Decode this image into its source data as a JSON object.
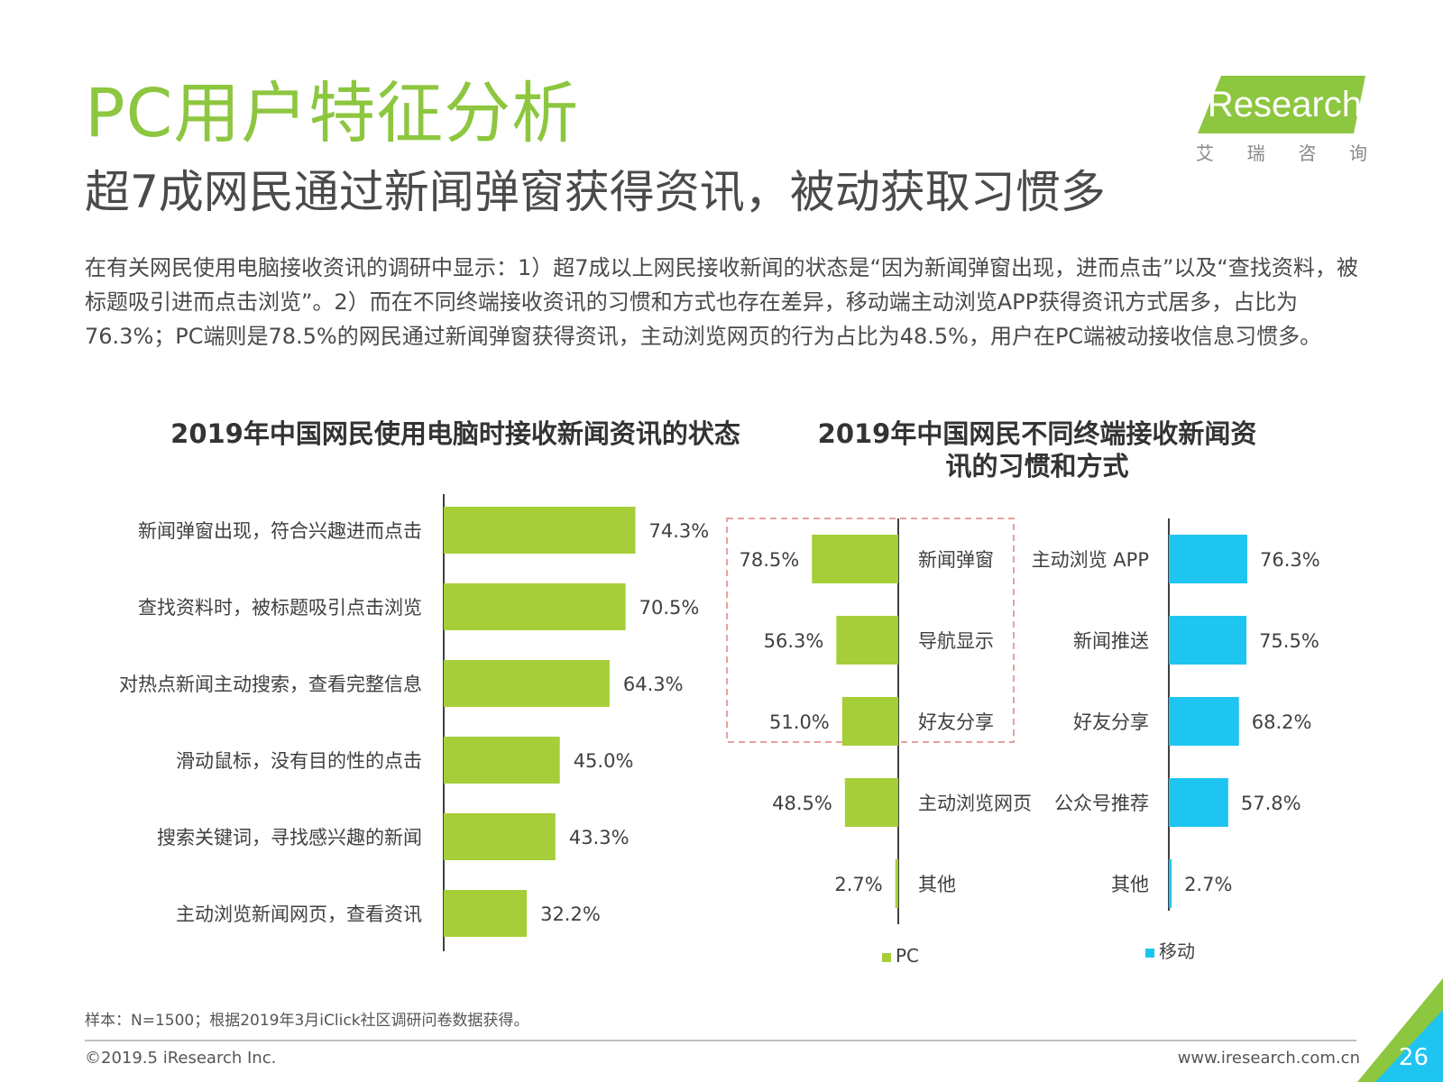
{
  "header": {
    "title": "PC用户特征分析",
    "subtitle": "超7成网民通过新闻弹窗获得资讯，被动获取习惯多",
    "body": "在有关网民使用电脑接收资讯的调研中显示：1）超7成以上网民接收新闻的状态是“因为新闻弹窗出现，进而点击”以及“查找资料，被标题吸引进而点击浏览”。2）而在不同终端接收资讯的习惯和方式也存在差异，移动端主动浏览APP获得资讯方式居多，占比为76.3%；PC端则是78.5%的网民通过新闻弹窗获得资讯，主动浏览网页的行为占比为48.5%，用户在PC端被动接收信息习惯多。"
  },
  "logo": {
    "brand": "iResearch",
    "cn": [
      "艾",
      "瑞",
      "咨",
      "询"
    ],
    "color": "#8dc63f"
  },
  "colors": {
    "accent": "#8dc63f",
    "pc_bar": "#a6ce39",
    "mobile_bar": "#1ec5f0",
    "highlight_box": "#e8a0a0"
  },
  "chart_data": [
    {
      "type": "bar",
      "orientation": "horizontal",
      "title": "2019年中国网民使用电脑时接收新闻资讯的状态",
      "categories": [
        "新闻弹窗出现，符合兴趣进而点击",
        "查找资料时，被标题吸引点击浏览",
        "对热点新闻主动搜索，查看完整信息",
        "滑动鼠标，没有目的性的点击",
        "搜索关键词，寻找感兴趣的新闻",
        "主动浏览新闻网页，查看资讯"
      ],
      "values": [
        74.3,
        70.5,
        64.3,
        45.0,
        43.3,
        32.2
      ],
      "labels": [
        "74.3%",
        "70.5%",
        "64.3%",
        "45.0%",
        "43.3%",
        "32.2%"
      ],
      "xlim": [
        0,
        100
      ],
      "color": "#a6ce39"
    },
    {
      "type": "bar",
      "orientation": "horizontal-butterfly",
      "title": "2019年中国网民不同终端接收新闻资讯的习惯和方式",
      "series": [
        {
          "name": "PC",
          "color": "#a6ce39",
          "categories": [
            "新闻弹窗",
            "导航显示",
            "好友分享",
            "主动浏览网页",
            "其他"
          ],
          "values": [
            78.5,
            56.3,
            51.0,
            48.5,
            2.7
          ],
          "labels": [
            "78.5%",
            "56.3%",
            "51.0%",
            "48.5%",
            "2.7%"
          ]
        },
        {
          "name": "移动",
          "color": "#1ec5f0",
          "categories": [
            "主动浏览 APP",
            "新闻推送",
            "好友分享",
            "公众号推荐",
            "其他"
          ],
          "values": [
            76.3,
            75.5,
            68.2,
            57.8,
            2.7
          ],
          "labels": [
            "76.3%",
            "75.5%",
            "68.2%",
            "57.8%",
            "2.7%"
          ]
        }
      ],
      "highlight": "top-3 PC bars",
      "legend": "bottom"
    }
  ],
  "footer": {
    "footnote": "样本：N=1500；根据2019年3月iClick社区调研问卷数据获得。",
    "copyright": "©2019.5 iResearch Inc.",
    "website": "www.iresearch.com.cn",
    "page_number": "26"
  }
}
